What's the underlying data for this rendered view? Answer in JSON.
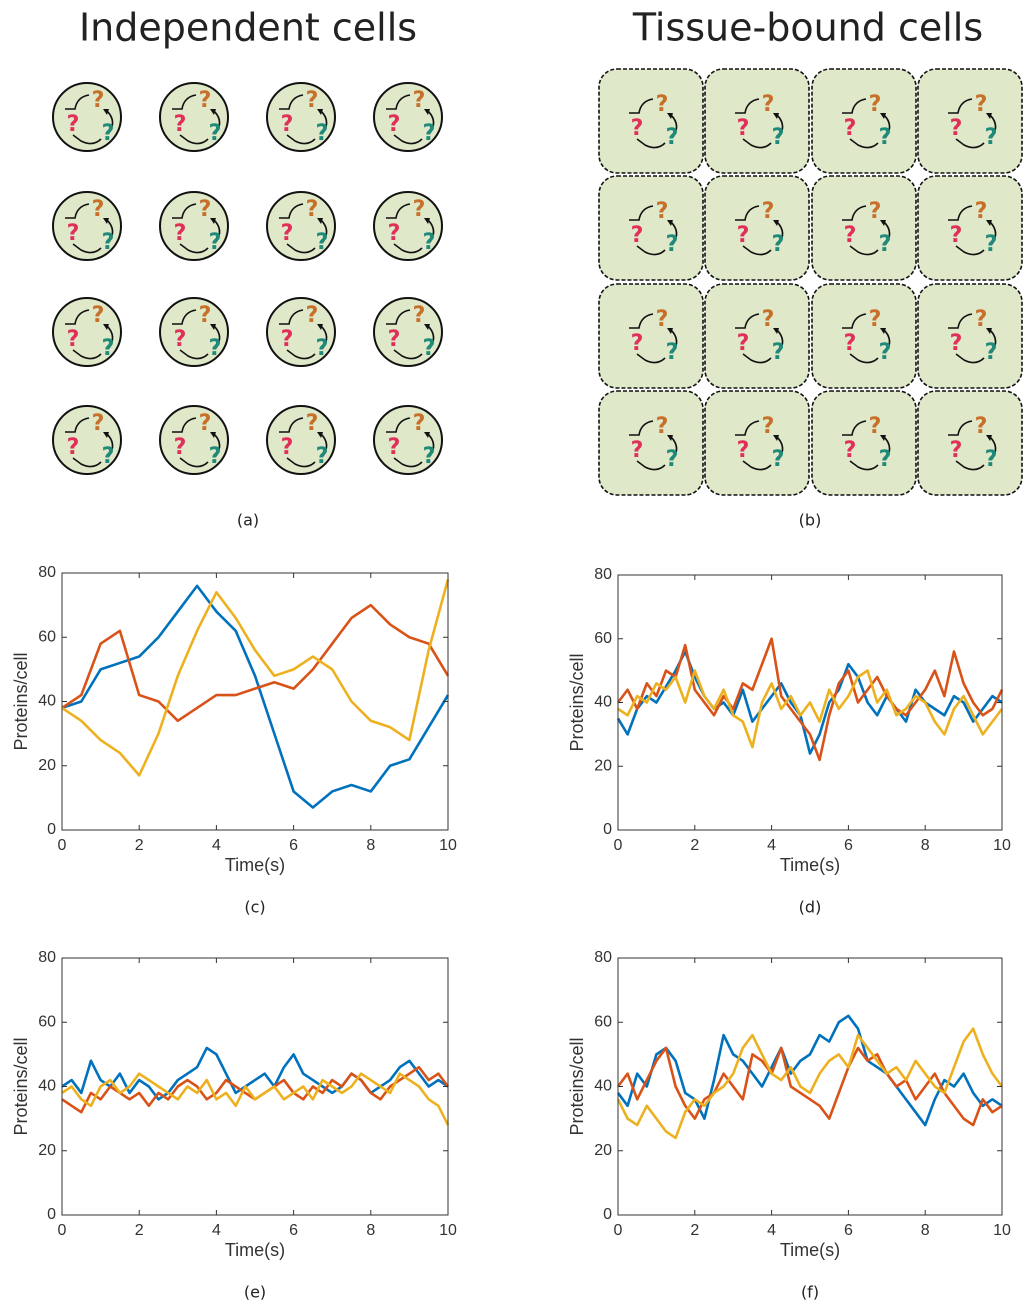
{
  "header": {
    "left_title": "Independent cells",
    "right_title": "Tissue-bound cells"
  },
  "cell_labels": [
    "?",
    "?",
    "?"
  ],
  "panel_labels": [
    "(a)",
    "(b)",
    "(c)",
    "(d)",
    "(e)",
    "(f)"
  ],
  "chart_data": [
    {
      "type": "line",
      "xlabel": "Time(s)",
      "ylabel": "Proteins/cell",
      "xlim": [
        0,
        10
      ],
      "ylim": [
        0,
        80
      ],
      "xticks": [
        0,
        2,
        4,
        6,
        8,
        10
      ],
      "yticks": [
        0,
        20,
        40,
        60,
        80
      ],
      "x": [
        0,
        0.5,
        1,
        1.5,
        2,
        2.5,
        3,
        3.5,
        4,
        4.5,
        5,
        5.5,
        6,
        6.5,
        7,
        7.5,
        8,
        8.5,
        9,
        9.5,
        10
      ],
      "series": [
        {
          "color": "#0072BD",
          "values": [
            38,
            40,
            50,
            52,
            54,
            60,
            68,
            76,
            68,
            62,
            48,
            30,
            12,
            7,
            12,
            14,
            12,
            20,
            22,
            32,
            42
          ]
        },
        {
          "color": "#D95319",
          "values": [
            38,
            42,
            58,
            62,
            42,
            40,
            34,
            38,
            42,
            42,
            44,
            46,
            44,
            50,
            58,
            66,
            70,
            64,
            60,
            58,
            48
          ]
        },
        {
          "color": "#EDB120",
          "values": [
            38,
            34,
            28,
            24,
            17,
            30,
            48,
            62,
            74,
            66,
            56,
            48,
            50,
            54,
            50,
            40,
            34,
            32,
            28,
            56,
            78
          ]
        }
      ]
    },
    {
      "type": "line",
      "xlabel": "Time(s)",
      "ylabel": "Proteins/cell",
      "xlim": [
        0,
        10
      ],
      "ylim": [
        0,
        80
      ],
      "xticks": [
        0,
        2,
        4,
        6,
        8,
        10
      ],
      "yticks": [
        0,
        20,
        40,
        60,
        80
      ],
      "x": [
        0,
        0.25,
        0.5,
        0.75,
        1,
        1.25,
        1.5,
        1.75,
        2,
        2.25,
        2.5,
        2.75,
        3,
        3.25,
        3.5,
        3.75,
        4,
        4.25,
        4.5,
        4.75,
        5,
        5.25,
        5.5,
        5.75,
        6,
        6.25,
        6.5,
        6.75,
        7,
        7.25,
        7.5,
        7.75,
        8,
        8.25,
        8.5,
        8.75,
        9,
        9.25,
        9.5,
        9.75,
        10
      ],
      "series": [
        {
          "color": "#0072BD",
          "values": [
            35,
            30,
            38,
            42,
            40,
            45,
            50,
            56,
            48,
            42,
            38,
            40,
            36,
            44,
            34,
            38,
            42,
            46,
            40,
            36,
            24,
            30,
            40,
            44,
            52,
            48,
            40,
            36,
            42,
            38,
            34,
            44,
            40,
            38,
            36,
            42,
            40,
            34,
            38,
            42,
            40
          ]
        },
        {
          "color": "#D95319",
          "values": [
            40,
            44,
            38,
            46,
            42,
            50,
            48,
            58,
            44,
            40,
            36,
            42,
            38,
            46,
            44,
            52,
            60,
            42,
            38,
            34,
            30,
            22,
            36,
            46,
            50,
            40,
            44,
            48,
            42,
            38,
            36,
            40,
            44,
            50,
            42,
            56,
            46,
            40,
            36,
            38,
            44
          ]
        },
        {
          "color": "#EDB120",
          "values": [
            38,
            36,
            42,
            40,
            46,
            44,
            48,
            40,
            50,
            42,
            38,
            44,
            36,
            34,
            26,
            40,
            46,
            38,
            42,
            36,
            40,
            34,
            44,
            38,
            42,
            48,
            50,
            40,
            44,
            36,
            38,
            42,
            40,
            34,
            30,
            38,
            42,
            36,
            30,
            34,
            38
          ]
        }
      ]
    },
    {
      "type": "line",
      "xlabel": "Time(s)",
      "ylabel": "Proteins/cell",
      "xlim": [
        0,
        10
      ],
      "ylim": [
        0,
        80
      ],
      "xticks": [
        0,
        2,
        4,
        6,
        8,
        10
      ],
      "yticks": [
        0,
        20,
        40,
        60,
        80
      ],
      "x": [
        0,
        0.25,
        0.5,
        0.75,
        1,
        1.25,
        1.5,
        1.75,
        2,
        2.25,
        2.5,
        2.75,
        3,
        3.25,
        3.5,
        3.75,
        4,
        4.25,
        4.5,
        4.75,
        5,
        5.25,
        5.5,
        5.75,
        6,
        6.25,
        6.5,
        6.75,
        7,
        7.25,
        7.5,
        7.75,
        8,
        8.25,
        8.5,
        8.75,
        9,
        9.25,
        9.5,
        9.75,
        10
      ],
      "series": [
        {
          "color": "#0072BD",
          "values": [
            40,
            42,
            38,
            48,
            42,
            40,
            44,
            38,
            42,
            40,
            36,
            38,
            42,
            44,
            46,
            52,
            50,
            44,
            38,
            40,
            42,
            44,
            40,
            46,
            50,
            44,
            42,
            40,
            38,
            40,
            44,
            42,
            38,
            40,
            42,
            46,
            48,
            44,
            40,
            42,
            40
          ]
        },
        {
          "color": "#D95319",
          "values": [
            36,
            34,
            32,
            38,
            36,
            40,
            38,
            36,
            38,
            34,
            38,
            36,
            40,
            42,
            40,
            36,
            38,
            42,
            40,
            38,
            36,
            38,
            40,
            42,
            38,
            36,
            40,
            38,
            42,
            40,
            44,
            42,
            38,
            36,
            40,
            42,
            44,
            46,
            42,
            44,
            40
          ]
        },
        {
          "color": "#EDB120",
          "values": [
            38,
            40,
            36,
            34,
            40,
            42,
            38,
            40,
            44,
            42,
            40,
            38,
            36,
            40,
            38,
            42,
            36,
            38,
            34,
            40,
            36,
            38,
            40,
            36,
            38,
            40,
            36,
            42,
            40,
            38,
            40,
            44,
            42,
            40,
            38,
            44,
            42,
            40,
            36,
            34,
            28
          ]
        }
      ]
    },
    {
      "type": "line",
      "xlabel": "Time(s)",
      "ylabel": "Proteins/cell",
      "xlim": [
        0,
        10
      ],
      "ylim": [
        0,
        80
      ],
      "xticks": [
        0,
        2,
        4,
        6,
        8,
        10
      ],
      "yticks": [
        0,
        20,
        40,
        60,
        80
      ],
      "x": [
        0,
        0.25,
        0.5,
        0.75,
        1,
        1.25,
        1.5,
        1.75,
        2,
        2.25,
        2.5,
        2.75,
        3,
        3.25,
        3.5,
        3.75,
        4,
        4.25,
        4.5,
        4.75,
        5,
        5.25,
        5.5,
        5.75,
        6,
        6.25,
        6.5,
        6.75,
        7,
        7.25,
        7.5,
        7.75,
        8,
        8.25,
        8.5,
        8.75,
        9,
        9.25,
        9.5,
        9.75,
        10
      ],
      "series": [
        {
          "color": "#0072BD",
          "values": [
            38,
            34,
            44,
            40,
            50,
            52,
            48,
            38,
            36,
            30,
            42,
            56,
            50,
            48,
            44,
            40,
            46,
            52,
            44,
            48,
            50,
            56,
            54,
            60,
            62,
            58,
            48,
            46,
            44,
            40,
            36,
            32,
            28,
            36,
            42,
            40,
            44,
            38,
            34,
            36,
            34
          ]
        },
        {
          "color": "#D95319",
          "values": [
            40,
            44,
            36,
            42,
            48,
            52,
            40,
            34,
            30,
            36,
            38,
            44,
            40,
            36,
            50,
            48,
            44,
            52,
            40,
            38,
            36,
            34,
            30,
            38,
            46,
            52,
            48,
            50,
            44,
            40,
            42,
            36,
            40,
            44,
            38,
            34,
            30,
            28,
            36,
            32,
            34
          ]
        },
        {
          "color": "#EDB120",
          "values": [
            36,
            30,
            28,
            34,
            30,
            26,
            24,
            32,
            36,
            34,
            38,
            40,
            44,
            52,
            56,
            50,
            44,
            42,
            46,
            40,
            38,
            44,
            48,
            50,
            46,
            56,
            52,
            48,
            44,
            46,
            42,
            48,
            44,
            40,
            38,
            46,
            54,
            58,
            50,
            44,
            40
          ]
        }
      ]
    }
  ]
}
